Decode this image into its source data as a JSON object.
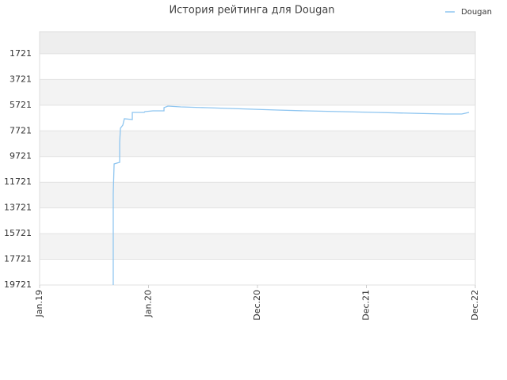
{
  "chart_data": {
    "type": "line",
    "title": "История рейтинга для Dougan",
    "xlim": [
      0,
      4
    ],
    "xticks": [
      {
        "value": 0,
        "label": "Jan.19"
      },
      {
        "value": 1,
        "label": "Jan.20"
      },
      {
        "value": 2,
        "label": "Dec.20"
      },
      {
        "value": 3,
        "label": "Dec.21"
      },
      {
        "value": 4,
        "label": "Dec.22"
      }
    ],
    "ylim": [
      19721,
      0
    ],
    "yticks": [
      1721,
      3721,
      5721,
      7721,
      9721,
      11721,
      13721,
      15721,
      17721,
      19721
    ],
    "grid": true,
    "legend": "top-right",
    "series": [
      {
        "name": "Dougan",
        "color": "#8ec5f0",
        "x": [
          0.676,
          0.676,
          0.684,
          0.735,
          0.735,
          0.742,
          0.764,
          0.778,
          0.851,
          0.851,
          0.96,
          0.967,
          1.04,
          1.142,
          1.142,
          1.178,
          1.295,
          1.527,
          1.745,
          1.964,
          2.182,
          2.436,
          2.764,
          3.091,
          3.404,
          3.724,
          3.876,
          3.942
        ],
        "values": [
          19721,
          12634,
          10292,
          10169,
          8628,
          7519,
          7272,
          6779,
          6841,
          6286,
          6286,
          6225,
          6163,
          6163,
          5916,
          5793,
          5855,
          5916,
          5978,
          6040,
          6101,
          6163,
          6225,
          6286,
          6348,
          6409,
          6409,
          6286
        ]
      }
    ]
  }
}
